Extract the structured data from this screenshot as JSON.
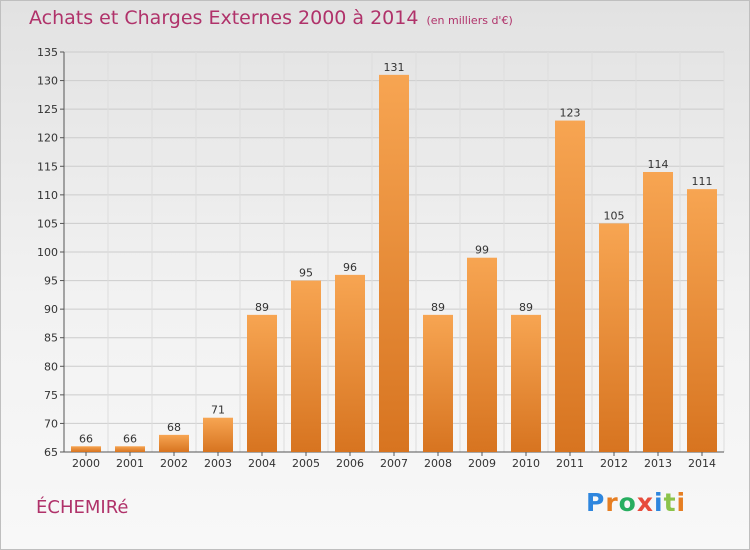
{
  "header": {
    "title": "Achats et Charges Externes 2000 à 2014",
    "unit": "(en milliers d'€)"
  },
  "footer": {
    "commune": "ÉCHEMIRé",
    "brand": {
      "letters": [
        "P",
        "r",
        "o",
        "x",
        "i",
        "t",
        "i"
      ],
      "colors": [
        "#2e86de",
        "#e67e22",
        "#27ae60",
        "#e74c3c",
        "#2e86de",
        "#8bc34a",
        "#e67e22"
      ]
    }
  },
  "chart_data": {
    "type": "bar",
    "categories": [
      "2000",
      "2001",
      "2002",
      "2003",
      "2004",
      "2005",
      "2006",
      "2007",
      "2008",
      "2009",
      "2010",
      "2011",
      "2012",
      "2013",
      "2014"
    ],
    "values": [
      66,
      66,
      68,
      71,
      89,
      95,
      96,
      131,
      89,
      99,
      89,
      123,
      105,
      114,
      111
    ],
    "ylim": [
      65,
      135
    ],
    "yticks": [
      65,
      70,
      75,
      80,
      85,
      90,
      95,
      100,
      105,
      110,
      115,
      120,
      125,
      130,
      135
    ],
    "grid": true,
    "bar_color_light": "#f7a552",
    "bar_color_dark": "#d77420",
    "title": "Achats et Charges Externes 2000 à 2014",
    "xlabel": "",
    "ylabel": ""
  }
}
